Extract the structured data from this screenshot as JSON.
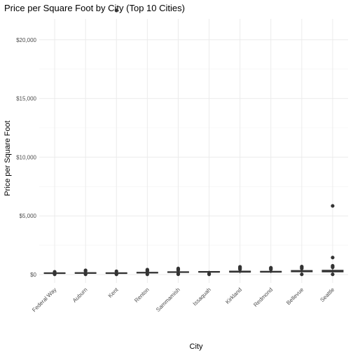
{
  "chart_data": {
    "type": "boxplot",
    "title": "Price per Square Foot by City (Top 10 Cities)",
    "xlabel": "City",
    "ylabel": "Price per Square Foot",
    "ylim": [
      0,
      23000
    ],
    "yticks": [
      0,
      5000,
      10000,
      15000,
      20000
    ],
    "ytick_labels": [
      "$0",
      "$5,000",
      "$10,000",
      "$15,000",
      "$20,000"
    ],
    "grid": true,
    "categories": [
      "Federal Way",
      "Auburn",
      "Kent",
      "Renton",
      "Sammamish",
      "Issaquah",
      "Kirkland",
      "Redmond",
      "Bellevue",
      "Seattle"
    ],
    "boxes": [
      {
        "q1": 90,
        "median": 120,
        "q3": 150,
        "whisker_low": 20,
        "whisker_high": 200
      },
      {
        "q1": 100,
        "median": 130,
        "q3": 165,
        "whisker_low": 30,
        "whisker_high": 230
      },
      {
        "q1": 90,
        "median": 120,
        "q3": 155,
        "whisker_low": 30,
        "whisker_high": 220
      },
      {
        "q1": 130,
        "median": 160,
        "q3": 195,
        "whisker_low": 40,
        "whisker_high": 260
      },
      {
        "q1": 180,
        "median": 210,
        "q3": 240,
        "whisker_low": 100,
        "whisker_high": 320
      },
      {
        "q1": 200,
        "median": 230,
        "q3": 260,
        "whisker_low": 120,
        "whisker_high": 330
      },
      {
        "q1": 200,
        "median": 240,
        "q3": 300,
        "whisker_low": 100,
        "whisker_high": 400
      },
      {
        "q1": 200,
        "median": 240,
        "q3": 280,
        "whisker_low": 120,
        "whisker_high": 360
      },
      {
        "q1": 230,
        "median": 280,
        "q3": 350,
        "whisker_low": 100,
        "whisker_high": 450
      },
      {
        "q1": 220,
        "median": 290,
        "q3": 370,
        "whisker_low": 50,
        "whisker_high": 600
      }
    ],
    "outliers": [
      {
        "category": "Federal Way",
        "y": 20
      },
      {
        "category": "Federal Way",
        "y": 230
      },
      {
        "category": "Auburn",
        "y": 20
      },
      {
        "category": "Auburn",
        "y": 300
      },
      {
        "category": "Auburn",
        "y": 360
      },
      {
        "category": "Kent",
        "y": 22500
      },
      {
        "category": "Kent",
        "y": 20
      },
      {
        "category": "Kent",
        "y": 280
      },
      {
        "category": "Renton",
        "y": 20
      },
      {
        "category": "Renton",
        "y": 300
      },
      {
        "category": "Renton",
        "y": 360
      },
      {
        "category": "Renton",
        "y": 420
      },
      {
        "category": "Sammamish",
        "y": 30
      },
      {
        "category": "Sammamish",
        "y": 60
      },
      {
        "category": "Sammamish",
        "y": 380
      },
      {
        "category": "Sammamish",
        "y": 450
      },
      {
        "category": "Sammamish",
        "y": 520
      },
      {
        "category": "Issaquah",
        "y": 20
      },
      {
        "category": "Issaquah",
        "y": 70
      },
      {
        "category": "Kirkland",
        "y": 450
      },
      {
        "category": "Kirkland",
        "y": 520
      },
      {
        "category": "Kirkland",
        "y": 600
      },
      {
        "category": "Kirkland",
        "y": 660
      },
      {
        "category": "Redmond",
        "y": 440
      },
      {
        "category": "Redmond",
        "y": 520
      },
      {
        "category": "Redmond",
        "y": 580
      },
      {
        "category": "Bellevue",
        "y": 20
      },
      {
        "category": "Bellevue",
        "y": 520
      },
      {
        "category": "Bellevue",
        "y": 600
      },
      {
        "category": "Bellevue",
        "y": 680
      },
      {
        "category": "Seattle",
        "y": 5850
      },
      {
        "category": "Seattle",
        "y": 1450
      },
      {
        "category": "Seattle",
        "y": 750
      },
      {
        "category": "Seattle",
        "y": 680
      },
      {
        "category": "Seattle",
        "y": 620
      },
      {
        "category": "Seattle",
        "y": 20
      }
    ]
  }
}
